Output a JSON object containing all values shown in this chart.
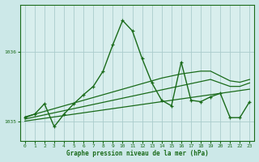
{
  "bg_color": "#cce8e8",
  "plot_bg_color": "#d8eeed",
  "grid_color": "#aacccc",
  "line_color": "#1a6b1a",
  "text_color": "#1a6b1a",
  "xlabel": "Graphe pression niveau de la mer (hPa)",
  "hours": [
    0,
    1,
    2,
    3,
    4,
    5,
    6,
    7,
    8,
    9,
    10,
    11,
    12,
    13,
    14,
    15,
    16,
    17,
    18,
    19,
    20,
    21,
    22,
    23
  ],
  "pressure": [
    1035.05,
    1035.1,
    1035.25,
    1034.92,
    1035.1,
    1035.25,
    1035.38,
    1035.5,
    1035.72,
    1036.1,
    1036.45,
    1036.3,
    1035.9,
    1035.55,
    1035.3,
    1035.22,
    1035.85,
    1035.3,
    1035.28,
    1035.35,
    1035.4,
    1035.05,
    1035.05,
    1035.28
  ],
  "trend1": [
    1035.0,
    1035.02,
    1035.04,
    1035.06,
    1035.08,
    1035.1,
    1035.12,
    1035.14,
    1035.16,
    1035.18,
    1035.2,
    1035.22,
    1035.24,
    1035.26,
    1035.28,
    1035.3,
    1035.32,
    1035.34,
    1035.36,
    1035.38,
    1035.4,
    1035.42,
    1035.44,
    1035.46
  ],
  "trend2": [
    1035.03,
    1035.06,
    1035.09,
    1035.12,
    1035.15,
    1035.18,
    1035.21,
    1035.24,
    1035.27,
    1035.3,
    1035.33,
    1035.36,
    1035.39,
    1035.42,
    1035.45,
    1035.48,
    1035.51,
    1035.54,
    1035.57,
    1035.6,
    1035.55,
    1035.5,
    1035.5,
    1035.55
  ],
  "trend3": [
    1035.06,
    1035.1,
    1035.14,
    1035.18,
    1035.22,
    1035.26,
    1035.3,
    1035.34,
    1035.38,
    1035.42,
    1035.46,
    1035.5,
    1035.54,
    1035.58,
    1035.62,
    1035.65,
    1035.68,
    1035.7,
    1035.72,
    1035.72,
    1035.65,
    1035.58,
    1035.56,
    1035.6
  ],
  "ylim": [
    1034.72,
    1036.68
  ],
  "yticks": [
    1035.0,
    1036.0
  ],
  "ytick_labels": [
    "1035",
    "1036"
  ]
}
